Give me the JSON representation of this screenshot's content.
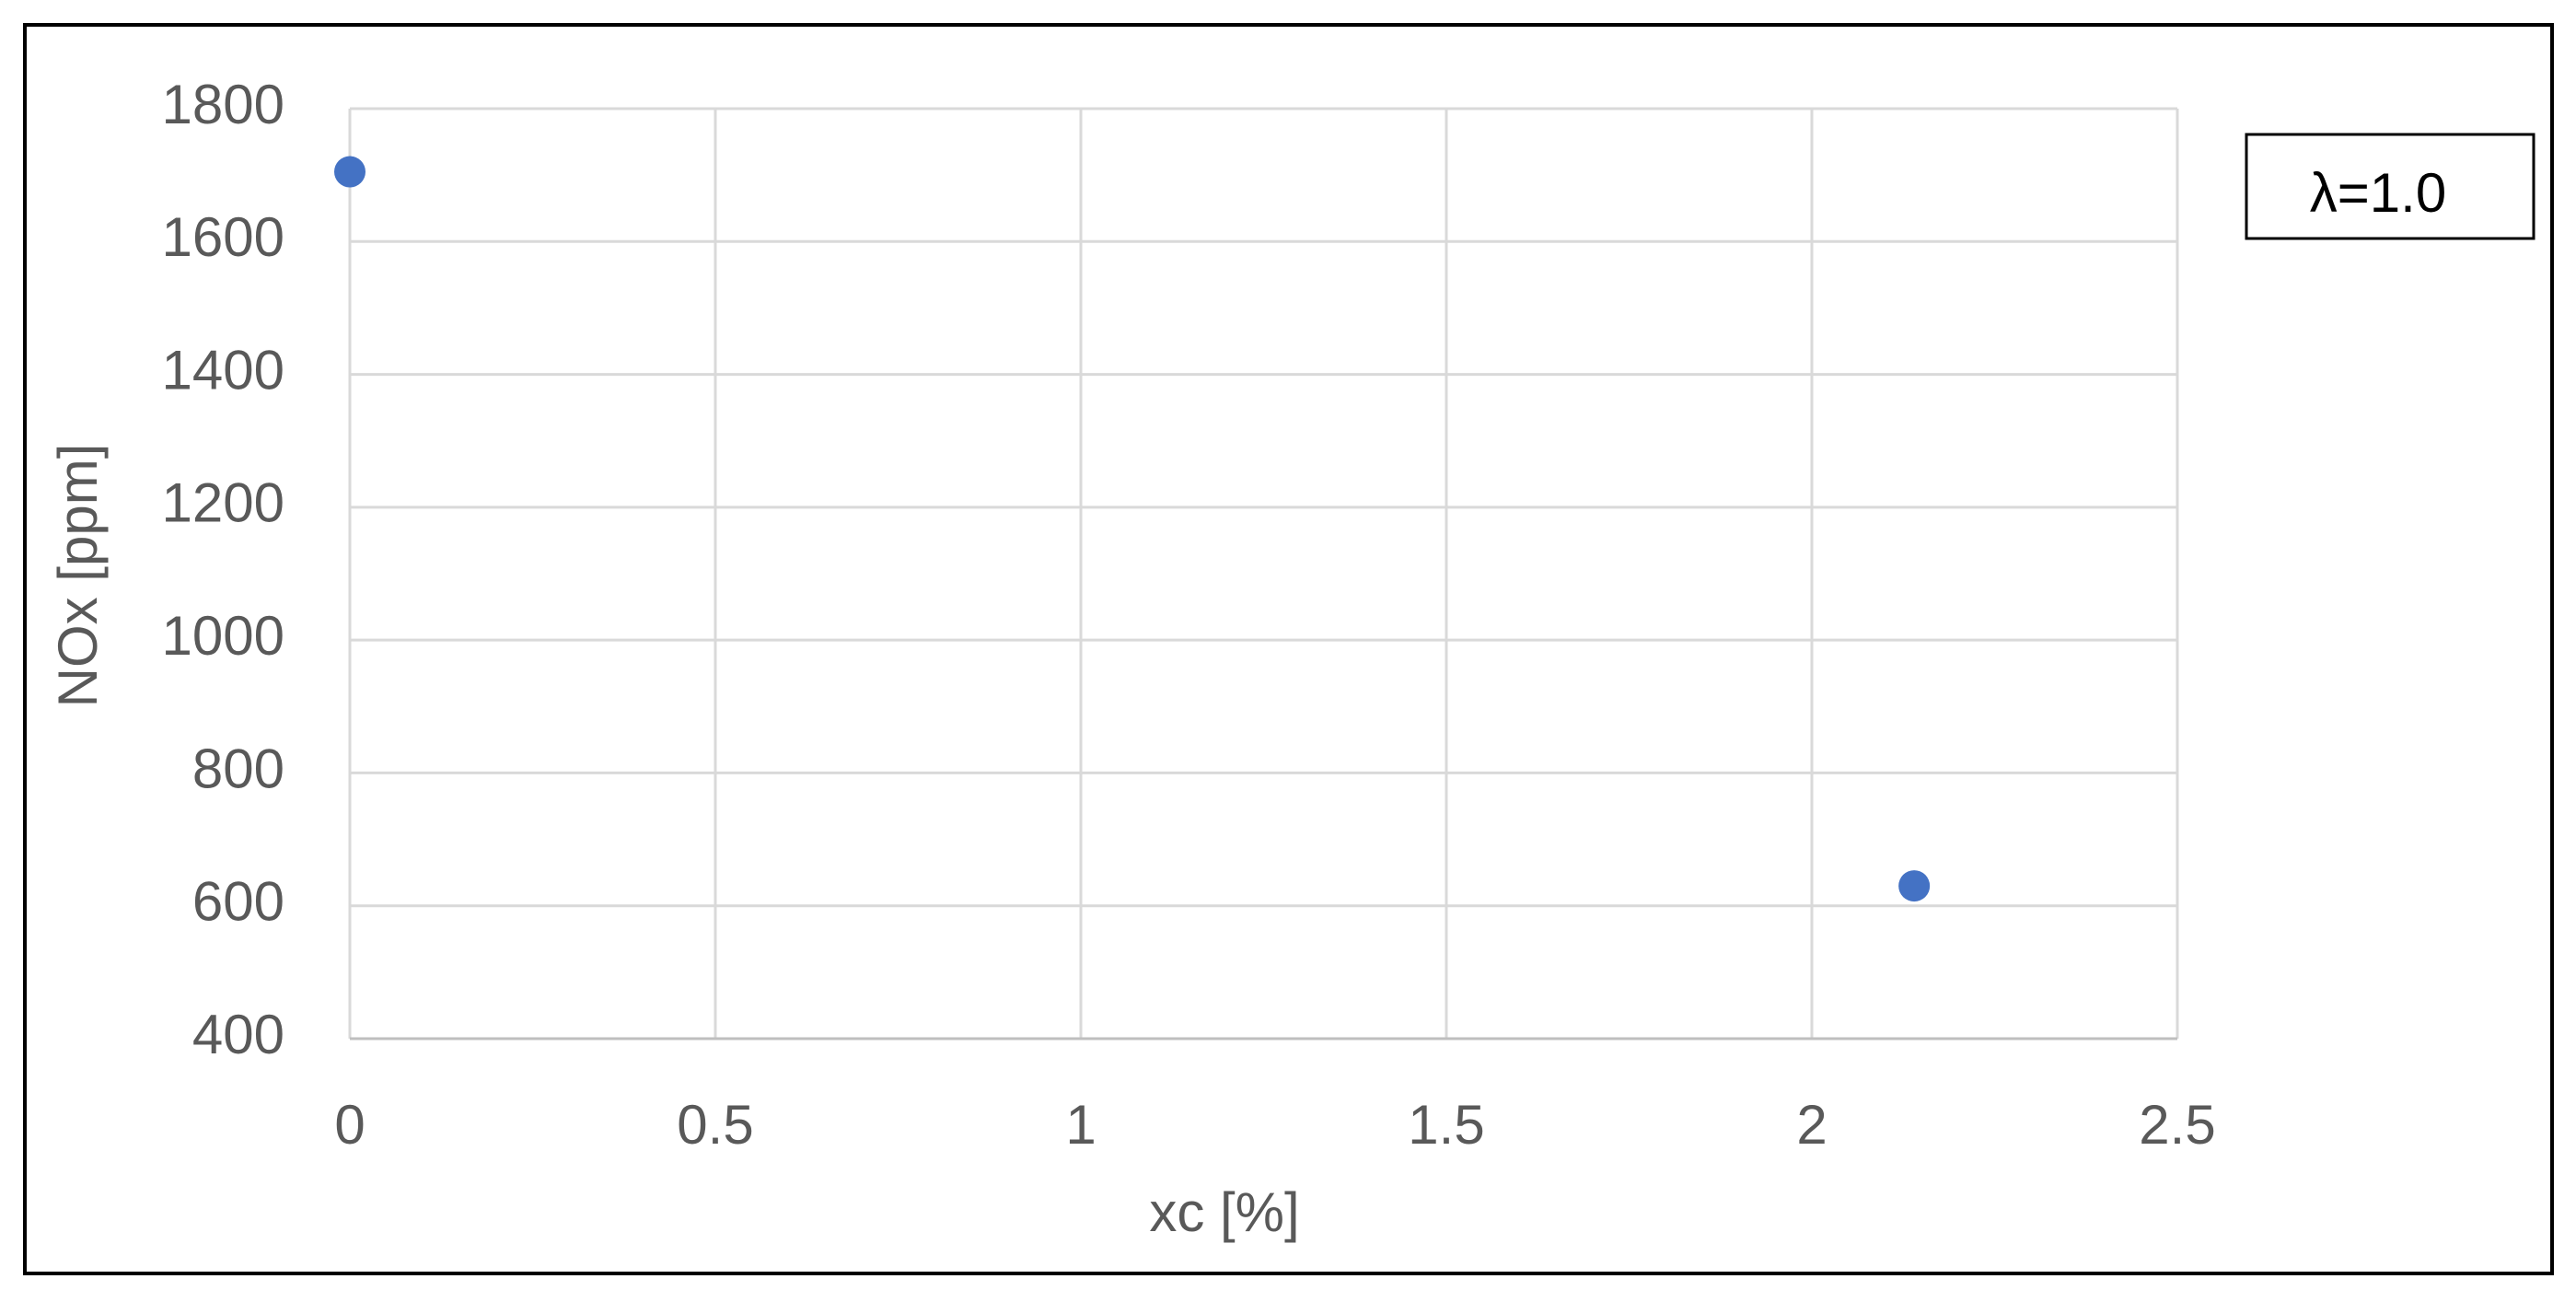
{
  "chart_data": {
    "type": "scatter",
    "x_label": "xc [%]",
    "y_label": "NOx [ppm]",
    "annotation": "λ=1.0",
    "x": [
      0,
      2.14
    ],
    "values": [
      1705,
      630
    ],
    "color": "#4472c4",
    "xlim": [
      0,
      2.5
    ],
    "xticks": [
      0,
      0.5,
      1,
      1.5,
      2,
      2.5
    ],
    "ylim": [
      400,
      1800
    ],
    "yticks": [
      400,
      600,
      800,
      1000,
      1200,
      1400,
      1600,
      1800
    ],
    "grid": true
  }
}
